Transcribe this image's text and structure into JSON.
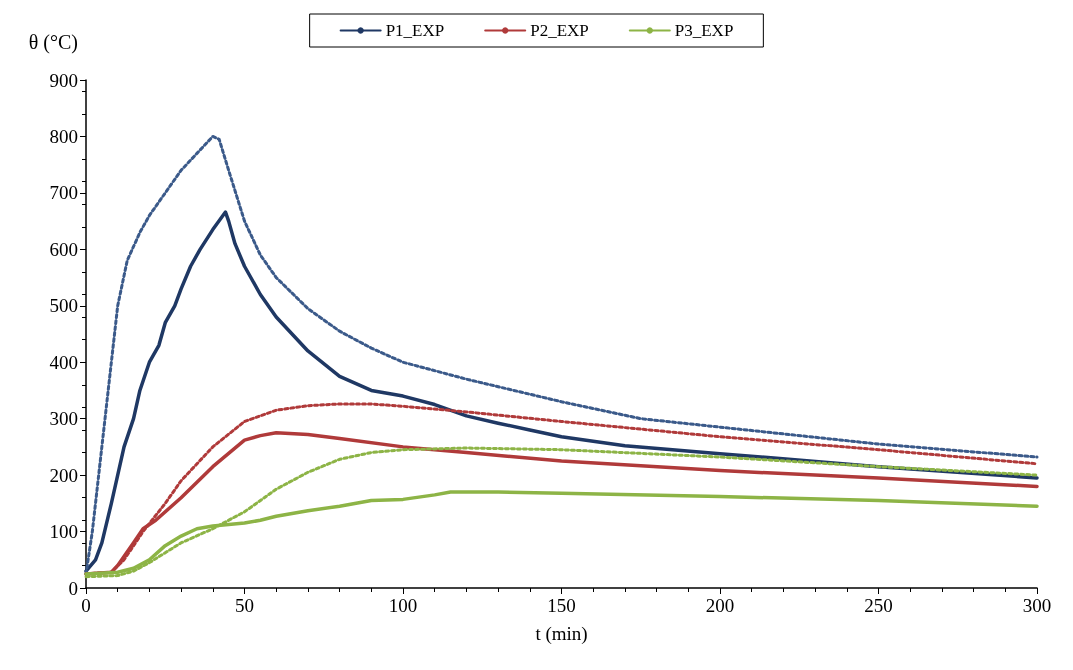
{
  "chart_data": {
    "type": "line",
    "xlabel": "t (min)",
    "ylabel": "θ (°C)",
    "xlim": [
      0,
      300
    ],
    "xticks": [
      0,
      50,
      100,
      150,
      200,
      250,
      300
    ],
    "ylim": [
      0,
      900
    ],
    "yticks": [
      0,
      100,
      200,
      300,
      400,
      500,
      600,
      700,
      800,
      900
    ],
    "grid": false,
    "legend": "top",
    "marker": "none",
    "series": [
      {
        "name": "P1_EXP",
        "color": "#1f3864",
        "line_style": "solid",
        "x": [
          0,
          3,
          5,
          8,
          10,
          12,
          15,
          17,
          20,
          23,
          25,
          28,
          30,
          33,
          36,
          40,
          44,
          45,
          47,
          50,
          55,
          60,
          70,
          80,
          90,
          100,
          110,
          120,
          130,
          140,
          150,
          170,
          200,
          250,
          300
        ],
        "values": [
          30,
          50,
          80,
          150,
          200,
          250,
          300,
          350,
          400,
          430,
          470,
          500,
          530,
          570,
          600,
          635,
          666,
          650,
          610,
          570,
          520,
          480,
          420,
          375,
          350,
          340,
          325,
          305,
          292,
          280,
          268,
          252,
          238,
          215,
          195
        ]
      },
      {
        "color": "#3b5a8a",
        "line_style": "dotted",
        "x": [
          0,
          2,
          5,
          8,
          10,
          13,
          17,
          20,
          25,
          30,
          35,
          40,
          42,
          45,
          50,
          55,
          60,
          70,
          80,
          90,
          100,
          120,
          150,
          175,
          200,
          250,
          300
        ],
        "values": [
          25,
          100,
          250,
          400,
          500,
          580,
          630,
          660,
          700,
          740,
          770,
          800,
          795,
          740,
          650,
          590,
          550,
          495,
          455,
          425,
          400,
          370,
          330,
          300,
          285,
          255,
          232
        ]
      },
      {
        "name": "P2_EXP",
        "color": "#b03a3a",
        "line_style": "solid",
        "x": [
          0,
          8,
          10,
          15,
          18,
          22,
          30,
          40,
          50,
          55,
          60,
          70,
          80,
          100,
          120,
          150,
          200,
          250,
          300
        ],
        "values": [
          25,
          28,
          40,
          80,
          105,
          120,
          160,
          215,
          262,
          270,
          275,
          272,
          265,
          250,
          240,
          225,
          208,
          195,
          180
        ]
      },
      {
        "color": "#b03a3a",
        "line_style": "dotted",
        "x": [
          0,
          8,
          12,
          18,
          25,
          30,
          40,
          50,
          60,
          70,
          80,
          90,
          100,
          120,
          150,
          200,
          250,
          300
        ],
        "values": [
          25,
          28,
          50,
          100,
          150,
          190,
          250,
          295,
          315,
          323,
          326,
          326,
          322,
          312,
          295,
          268,
          245,
          220
        ]
      },
      {
        "name": "P3_EXP",
        "color": "#8db446",
        "line_style": "solid",
        "x": [
          0,
          10,
          15,
          20,
          25,
          30,
          35,
          40,
          50,
          55,
          60,
          70,
          80,
          90,
          100,
          110,
          115,
          130,
          150,
          200,
          250,
          300
        ],
        "values": [
          25,
          28,
          35,
          50,
          75,
          92,
          105,
          110,
          115,
          120,
          127,
          137,
          145,
          155,
          157,
          165,
          170,
          170,
          168,
          162,
          155,
          145
        ]
      },
      {
        "color": "#8db446",
        "line_style": "dotted",
        "x": [
          0,
          10,
          15,
          20,
          30,
          40,
          50,
          60,
          70,
          80,
          90,
          100,
          120,
          150,
          200,
          250,
          300
        ],
        "values": [
          20,
          22,
          30,
          45,
          80,
          105,
          135,
          175,
          205,
          228,
          240,
          245,
          248,
          245,
          232,
          215,
          200
        ]
      }
    ]
  }
}
